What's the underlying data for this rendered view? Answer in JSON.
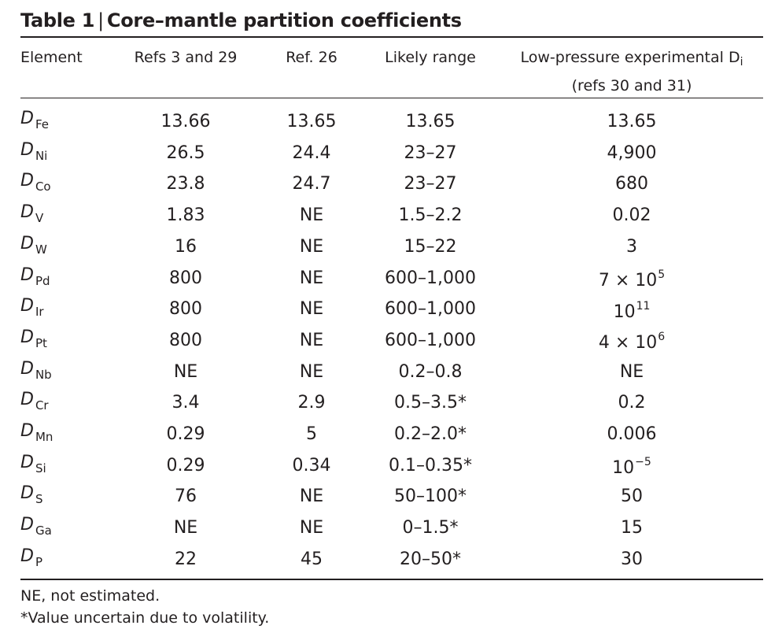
{
  "title": {
    "label": "Table 1",
    "separator": "|",
    "text": "Core–mantle partition coefficients"
  },
  "headers": {
    "element": "Element",
    "refs_3_29": "Refs 3 and 29",
    "ref_26": "Ref. 26",
    "likely_range": "Likely range",
    "low_pressure_line1": "Low-pressure experimental D",
    "low_pressure_sub": "i",
    "low_pressure_line2": "(refs 30 and 31)"
  },
  "rows": [
    {
      "symbol": "D",
      "sub": "Fe",
      "refs_3_29": "13.66",
      "ref_26": "13.65",
      "likely_range": "13.65",
      "low_pressure": "13.65",
      "low_pressure_sup": ""
    },
    {
      "symbol": "D",
      "sub": "Ni",
      "refs_3_29": "26.5",
      "ref_26": "24.4",
      "likely_range": "23–27",
      "low_pressure": "4,900",
      "low_pressure_sup": ""
    },
    {
      "symbol": "D",
      "sub": "Co",
      "refs_3_29": "23.8",
      "ref_26": "24.7",
      "likely_range": "23–27",
      "low_pressure": "680",
      "low_pressure_sup": ""
    },
    {
      "symbol": "D",
      "sub": "V",
      "refs_3_29": "1.83",
      "ref_26": "NE",
      "likely_range": "1.5–2.2",
      "low_pressure": "0.02",
      "low_pressure_sup": ""
    },
    {
      "symbol": "D",
      "sub": "W",
      "refs_3_29": "16",
      "ref_26": "NE",
      "likely_range": "15–22",
      "low_pressure": "3",
      "low_pressure_sup": ""
    },
    {
      "symbol": "D",
      "sub": "Pd",
      "refs_3_29": "800",
      "ref_26": "NE",
      "likely_range": "600–1,000",
      "low_pressure": "7 × 10",
      "low_pressure_sup": "5"
    },
    {
      "symbol": "D",
      "sub": "Ir",
      "refs_3_29": "800",
      "ref_26": "NE",
      "likely_range": "600–1,000",
      "low_pressure": "10",
      "low_pressure_sup": "11"
    },
    {
      "symbol": "D",
      "sub": "Pt",
      "refs_3_29": "800",
      "ref_26": "NE",
      "likely_range": "600–1,000",
      "low_pressure": "4 × 10",
      "low_pressure_sup": "6"
    },
    {
      "symbol": "D",
      "sub": "Nb",
      "refs_3_29": "NE",
      "ref_26": "NE",
      "likely_range": "0.2–0.8",
      "low_pressure": "NE",
      "low_pressure_sup": ""
    },
    {
      "symbol": "D",
      "sub": "Cr",
      "refs_3_29": "3.4",
      "ref_26": "2.9",
      "likely_range": "0.5–3.5*",
      "low_pressure": "0.2",
      "low_pressure_sup": ""
    },
    {
      "symbol": "D",
      "sub": "Mn",
      "refs_3_29": "0.29",
      "ref_26": "5",
      "likely_range": "0.2–2.0*",
      "low_pressure": "0.006",
      "low_pressure_sup": ""
    },
    {
      "symbol": "D",
      "sub": "Si",
      "refs_3_29": "0.29",
      "ref_26": "0.34",
      "likely_range": "0.1–0.35*",
      "low_pressure": "10",
      "low_pressure_sup": "−5"
    },
    {
      "symbol": "D",
      "sub": "S",
      "refs_3_29": "76",
      "ref_26": "NE",
      "likely_range": "50–100*",
      "low_pressure": "50",
      "low_pressure_sup": ""
    },
    {
      "symbol": "D",
      "sub": "Ga",
      "refs_3_29": "NE",
      "ref_26": "NE",
      "likely_range": "0–1.5*",
      "low_pressure": "15",
      "low_pressure_sup": ""
    },
    {
      "symbol": "D",
      "sub": "P",
      "refs_3_29": "22",
      "ref_26": "45",
      "likely_range": "20–50*",
      "low_pressure": "30",
      "low_pressure_sup": ""
    }
  ],
  "notes": [
    "NE, not estimated.",
    "*Value uncertain due to volatility."
  ]
}
